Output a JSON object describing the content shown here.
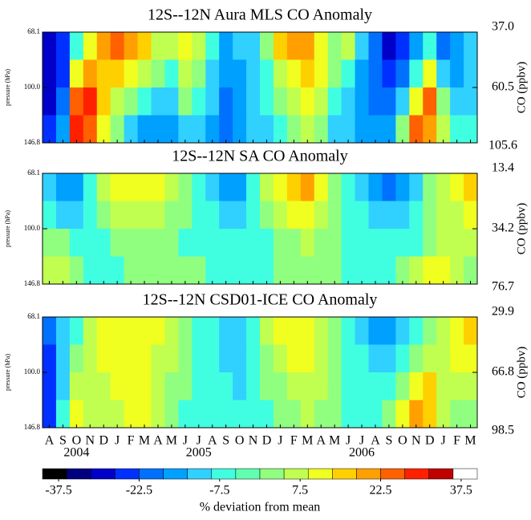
{
  "chart_data": [
    {
      "type": "heatmap",
      "title": "12S--12N Aura MLS CO Anomaly",
      "ylabel": "pressure (hPa)",
      "y2label": "CO (ppbv)",
      "ylim": [
        146.8,
        68.1
      ],
      "log_y": true,
      "yticks": [
        68.1,
        {
          "value": 100,
          "label": "100.0"
        },
        146.8
      ],
      "right_labels": [
        "37.0",
        "60.5",
        "105.6"
      ],
      "ybins": [
        68.1,
        82.5,
        100,
        121.2,
        146.8
      ],
      "z": [
        [
          -30,
          -25,
          -5,
          10,
          20,
          25,
          20,
          15,
          5,
          5,
          10,
          5,
          -5,
          -15,
          -10,
          -10,
          0,
          15,
          20,
          20,
          10,
          0,
          5,
          -10,
          -20,
          -30,
          -25,
          -15,
          -5,
          -20,
          -15,
          -10
        ],
        [
          -30,
          -25,
          10,
          20,
          15,
          15,
          10,
          5,
          0,
          -5,
          5,
          0,
          -10,
          -15,
          -15,
          -10,
          -5,
          5,
          10,
          15,
          10,
          0,
          -5,
          -15,
          -20,
          -25,
          -20,
          -5,
          10,
          -10,
          -15,
          -10
        ],
        [
          -30,
          -20,
          25,
          30,
          15,
          5,
          0,
          -5,
          -10,
          -10,
          0,
          -5,
          -10,
          -20,
          -15,
          -10,
          -5,
          0,
          5,
          10,
          5,
          -5,
          -10,
          -15,
          -20,
          -20,
          -10,
          10,
          25,
          0,
          -10,
          -10
        ],
        [
          -25,
          -15,
          30,
          25,
          10,
          0,
          -10,
          -15,
          -15,
          -15,
          -10,
          -10,
          -15,
          -20,
          -15,
          -10,
          -10,
          -5,
          0,
          5,
          0,
          -10,
          -10,
          -15,
          -15,
          -15,
          0,
          25,
          20,
          5,
          -5,
          -5
        ]
      ]
    },
    {
      "type": "heatmap",
      "title": "12S--12N SA CO Anomaly",
      "ylabel": "pressure (hPa)",
      "y2label": "CO (ppbv)",
      "ylim": [
        146.8,
        68.1
      ],
      "log_y": true,
      "yticks": [
        68.1,
        {
          "value": 100,
          "label": "100.0"
        },
        146.8
      ],
      "right_labels": [
        "13.4",
        "34.2",
        "76.7"
      ],
      "ybins": [
        68.1,
        82.5,
        100,
        121.2,
        146.8
      ],
      "z": [
        [
          -10,
          -15,
          -15,
          -5,
          5,
          10,
          10,
          10,
          10,
          5,
          0,
          -5,
          -10,
          -15,
          -15,
          -5,
          5,
          10,
          15,
          20,
          10,
          0,
          -5,
          -10,
          -15,
          -20,
          -15,
          -10,
          0,
          5,
          10,
          15
        ],
        [
          -5,
          -10,
          -10,
          -5,
          0,
          5,
          5,
          5,
          5,
          0,
          0,
          -5,
          -5,
          -10,
          -10,
          -5,
          0,
          5,
          10,
          10,
          5,
          0,
          -5,
          -5,
          -10,
          -10,
          -10,
          -5,
          0,
          5,
          5,
          10
        ],
        [
          0,
          0,
          -5,
          -5,
          -5,
          0,
          0,
          0,
          0,
          0,
          -5,
          -5,
          -5,
          -5,
          -5,
          -5,
          -5,
          0,
          0,
          5,
          0,
          0,
          -5,
          -5,
          -5,
          -5,
          -5,
          -5,
          0,
          5,
          5,
          5
        ],
        [
          5,
          5,
          0,
          -5,
          -5,
          -5,
          0,
          0,
          0,
          0,
          0,
          0,
          -5,
          -5,
          -5,
          -5,
          -5,
          0,
          0,
          0,
          0,
          0,
          -5,
          -5,
          -5,
          -5,
          0,
          5,
          10,
          10,
          5,
          0
        ]
      ]
    },
    {
      "type": "heatmap",
      "title": "12S--12N CSD01-ICE CO Anomaly",
      "ylabel": "pressure (hPa)",
      "y2label": "CO (ppbv)",
      "ylim": [
        146.8,
        68.1
      ],
      "log_y": true,
      "yticks": [
        68.1,
        {
          "value": 100,
          "label": "100.0"
        },
        146.8
      ],
      "right_labels": [
        "29.9",
        "66.8",
        "98.5"
      ],
      "ybins": [
        68.1,
        82.5,
        100,
        121.2,
        146.8
      ],
      "z": [
        [
          -20,
          -10,
          -5,
          5,
          10,
          10,
          10,
          10,
          10,
          5,
          0,
          -5,
          -5,
          -10,
          -10,
          -5,
          5,
          10,
          10,
          10,
          5,
          0,
          -5,
          -10,
          -15,
          -15,
          -10,
          -5,
          0,
          5,
          10,
          15
        ],
        [
          -25,
          -10,
          0,
          5,
          10,
          10,
          10,
          10,
          5,
          5,
          0,
          -5,
          -5,
          -10,
          -10,
          -5,
          0,
          5,
          10,
          10,
          5,
          0,
          -5,
          -5,
          -10,
          -10,
          -5,
          0,
          5,
          5,
          10,
          10
        ],
        [
          -25,
          -10,
          5,
          5,
          5,
          10,
          10,
          10,
          5,
          0,
          0,
          -5,
          -5,
          -5,
          -10,
          -5,
          0,
          0,
          5,
          5,
          5,
          0,
          -5,
          -5,
          -5,
          -5,
          0,
          10,
          15,
          5,
          5,
          5
        ],
        [
          -25,
          -5,
          10,
          5,
          5,
          5,
          10,
          10,
          5,
          0,
          -5,
          -5,
          -5,
          -5,
          -5,
          -5,
          -5,
          0,
          0,
          5,
          0,
          0,
          -5,
          -5,
          -5,
          0,
          10,
          20,
          15,
          5,
          0,
          0
        ]
      ]
    }
  ],
  "x_axis": {
    "categories": [
      "A",
      "S",
      "O",
      "N",
      "D",
      "J",
      "F",
      "M",
      "A",
      "M",
      "J",
      "J",
      "A",
      "S",
      "O",
      "N",
      "D",
      "J",
      "F",
      "M",
      "A",
      "M",
      "J",
      "J",
      "A",
      "S",
      "O",
      "N",
      "D",
      "J",
      "F",
      "M"
    ],
    "years": [
      null,
      null,
      "2004",
      null,
      null,
      null,
      null,
      null,
      null,
      null,
      null,
      "2005",
      null,
      null,
      null,
      null,
      null,
      null,
      null,
      null,
      null,
      null,
      null,
      "2006",
      null,
      null,
      null,
      null,
      null,
      null,
      null,
      null
    ]
  },
  "colorbar": {
    "label": "% deviation from mean",
    "bins": [
      -40.5,
      -36,
      -31.5,
      -27,
      -22.5,
      -18,
      -13.5,
      -9,
      -4.5,
      0,
      4.5,
      9,
      13.5,
      18,
      22.5,
      27,
      31.5,
      36,
      40.5
    ],
    "colors": [
      "#000000",
      "#00007f",
      "#0000c8",
      "#0030ff",
      "#0070ff",
      "#00a0ff",
      "#30d0ff",
      "#40ffe0",
      "#60ffb0",
      "#90ff80",
      "#c0ff50",
      "#f0ff20",
      "#ffd000",
      "#ffa000",
      "#ff6000",
      "#ff2000",
      "#c00000",
      "#ffffff"
    ],
    "ticks": [
      -37.5,
      -22.5,
      -7.5,
      7.5,
      22.5,
      37.5
    ]
  }
}
